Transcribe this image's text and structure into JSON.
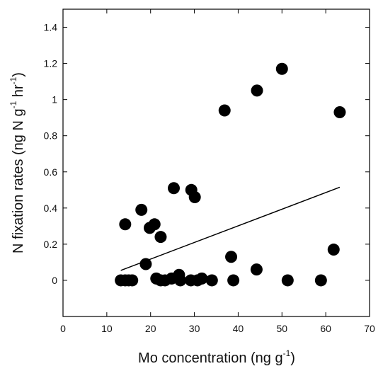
{
  "chart_data": {
    "type": "scatter",
    "xlabel": "Mo concentration (ng g",
    "xlabel_sup": "-1",
    "xlabel_end": ")",
    "ylabel": "N fixation rates (ng N g",
    "ylabel_sup1": "-1",
    "ylabel_mid": " hr",
    "ylabel_sup2": "-1",
    "ylabel_end": ")",
    "xlim": [
      0,
      70
    ],
    "ylim": [
      -0.2,
      1.5
    ],
    "xticks": [
      0,
      10,
      20,
      30,
      40,
      50,
      60,
      70
    ],
    "yticks": [
      0,
      0.2,
      0.4,
      0.6,
      0.8,
      1,
      1.2,
      1.4
    ],
    "ytick_labels": [
      "0",
      "0.2",
      "0.4",
      "0.6",
      "0.8",
      "1",
      "1.2",
      "1.4"
    ],
    "grid": false,
    "marker_color": "#000000",
    "points": [
      {
        "x": 13.2,
        "y": 0.0
      },
      {
        "x": 14.2,
        "y": 0.0
      },
      {
        "x": 15.0,
        "y": 0.0
      },
      {
        "x": 15.8,
        "y": 0.0
      },
      {
        "x": 14.2,
        "y": 0.31
      },
      {
        "x": 17.9,
        "y": 0.39
      },
      {
        "x": 18.9,
        "y": 0.09
      },
      {
        "x": 19.8,
        "y": 0.29
      },
      {
        "x": 20.9,
        "y": 0.31
      },
      {
        "x": 21.3,
        "y": 0.01
      },
      {
        "x": 22.3,
        "y": 0.0
      },
      {
        "x": 22.3,
        "y": 0.24
      },
      {
        "x": 23.3,
        "y": 0.0
      },
      {
        "x": 24.8,
        "y": 0.01
      },
      {
        "x": 25.3,
        "y": 0.51
      },
      {
        "x": 26.5,
        "y": 0.03
      },
      {
        "x": 26.8,
        "y": 0.0
      },
      {
        "x": 29.2,
        "y": 0.0
      },
      {
        "x": 29.3,
        "y": 0.5
      },
      {
        "x": 30.1,
        "y": 0.46
      },
      {
        "x": 30.7,
        "y": 0.0
      },
      {
        "x": 31.7,
        "y": 0.01
      },
      {
        "x": 34.0,
        "y": 0.0
      },
      {
        "x": 36.9,
        "y": 0.94
      },
      {
        "x": 38.4,
        "y": 0.13
      },
      {
        "x": 38.9,
        "y": 0.0
      },
      {
        "x": 44.3,
        "y": 1.05
      },
      {
        "x": 44.2,
        "y": 0.06
      },
      {
        "x": 50.0,
        "y": 1.17
      },
      {
        "x": 51.3,
        "y": 0.0
      },
      {
        "x": 58.9,
        "y": 0.0
      },
      {
        "x": 61.8,
        "y": 0.17
      },
      {
        "x": 63.2,
        "y": 0.93
      }
    ],
    "trendline": {
      "x": [
        13.2,
        63.2
      ],
      "y": [
        0.055,
        0.515
      ]
    }
  }
}
